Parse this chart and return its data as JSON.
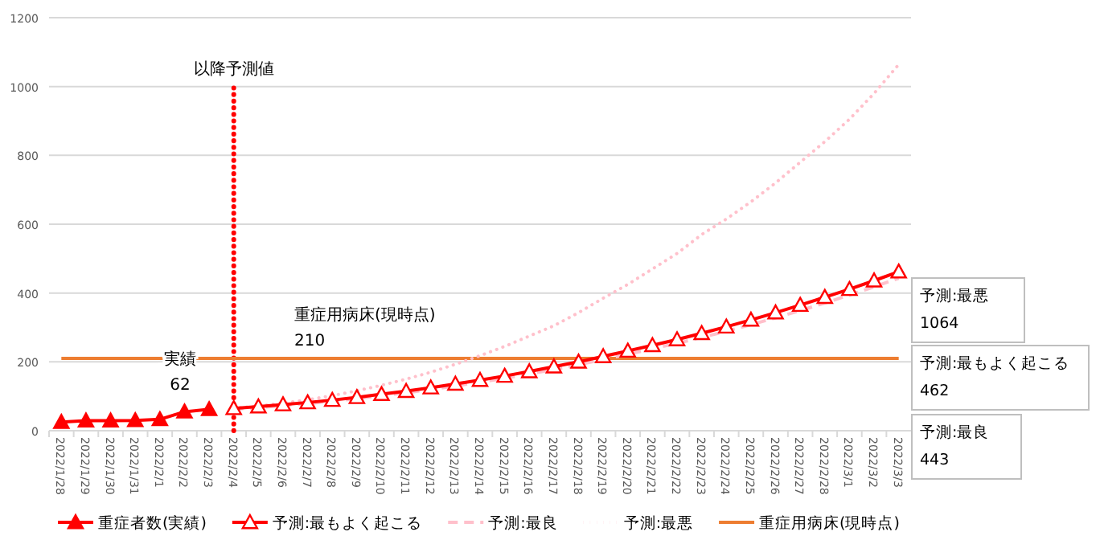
{
  "chart_data": {
    "type": "line",
    "categories": [
      "2022/1/28",
      "2022/1/29",
      "2022/1/30",
      "2022/1/31",
      "2022/2/1",
      "2022/2/2",
      "2022/2/3",
      "2022/2/4",
      "2022/2/5",
      "2022/2/6",
      "2022/2/7",
      "2022/2/8",
      "2022/2/9",
      "2022/2/10",
      "2022/2/11",
      "2022/2/12",
      "2022/2/13",
      "2022/2/14",
      "2022/2/15",
      "2022/2/16",
      "2022/2/17",
      "2022/2/18",
      "2022/2/19",
      "2022/2/20",
      "2022/2/21",
      "2022/2/22",
      "2022/2/23",
      "2022/2/24",
      "2022/2/25",
      "2022/2/26",
      "2022/2/27",
      "2022/2/28",
      "2022/3/1",
      "2022/3/2",
      "2022/3/3"
    ],
    "series": [
      {
        "name": "重症者数(実績)",
        "color": "#ff0000",
        "marker": "triangle",
        "line_style": "solid",
        "values": [
          25,
          29,
          29,
          30,
          33,
          55,
          62,
          null,
          null,
          null,
          null,
          null,
          null,
          null,
          null,
          null,
          null,
          null,
          null,
          null,
          null,
          null,
          null,
          null,
          null,
          null,
          null,
          null,
          null,
          null,
          null,
          null,
          null,
          null,
          null
        ]
      },
      {
        "name": "予測:最もよく起こる",
        "color": "#ff0000",
        "marker": "triangle",
        "line_style": "solid",
        "values": [
          null,
          null,
          null,
          null,
          null,
          null,
          null,
          65,
          70,
          76,
          82,
          89,
          97,
          106,
          115,
          125,
          136,
          147,
          159,
          172,
          186,
          200,
          216,
          232,
          248,
          265,
          283,
          302,
          322,
          343,
          365,
          388,
          411,
          436,
          462
        ]
      },
      {
        "name": "予測:最良",
        "color": "#ffc0cb",
        "marker": "none",
        "line_style": "dashed",
        "values": [
          null,
          null,
          null,
          null,
          null,
          null,
          null,
          62,
          67,
          73,
          79,
          86,
          93,
          102,
          110,
          120,
          130,
          141,
          152,
          165,
          178,
          192,
          207,
          222,
          238,
          254,
          271,
          289,
          308,
          328,
          349,
          371,
          394,
          418,
          443
        ]
      },
      {
        "name": "予測:最悪",
        "color": "#ffc0cb",
        "marker": "none",
        "line_style": "dotted",
        "values": [
          null,
          null,
          null,
          null,
          null,
          null,
          null,
          65,
          72,
          80,
          90,
          102,
          116,
          132,
          150,
          170,
          193,
          218,
          245,
          275,
          305,
          343,
          385,
          425,
          470,
          515,
          570,
          615,
          665,
          720,
          780,
          840,
          905,
          980,
          1064
        ]
      },
      {
        "name": "重症用病床(現時点)",
        "color": "#ed7d31",
        "marker": "none",
        "line_style": "solid",
        "values": [
          210,
          210,
          210,
          210,
          210,
          210,
          210,
          210,
          210,
          210,
          210,
          210,
          210,
          210,
          210,
          210,
          210,
          210,
          210,
          210,
          210,
          210,
          210,
          210,
          210,
          210,
          210,
          210,
          210,
          210,
          210,
          210,
          210,
          210,
          210
        ]
      }
    ],
    "ylim": [
      0,
      1200
    ],
    "yticks": [
      0,
      200,
      400,
      600,
      800,
      1000,
      1200
    ],
    "grid": "y",
    "legend": "bottom",
    "ref_lines": [
      {
        "axis": "x",
        "value": "2022/2/4",
        "label": "以降予測値",
        "color": "#ff0000",
        "line_style": "dotted"
      }
    ],
    "annotations": [
      {
        "text": "実績\n62",
        "x": "2022/2/3",
        "y": 62
      },
      {
        "text": "重症用病床(現時点)\n210",
        "x": "2022/2/6",
        "y": 210
      },
      "予測:最悪\n1064",
      "予測:最もよく起こる\n462",
      "予測:最良\n443"
    ]
  }
}
